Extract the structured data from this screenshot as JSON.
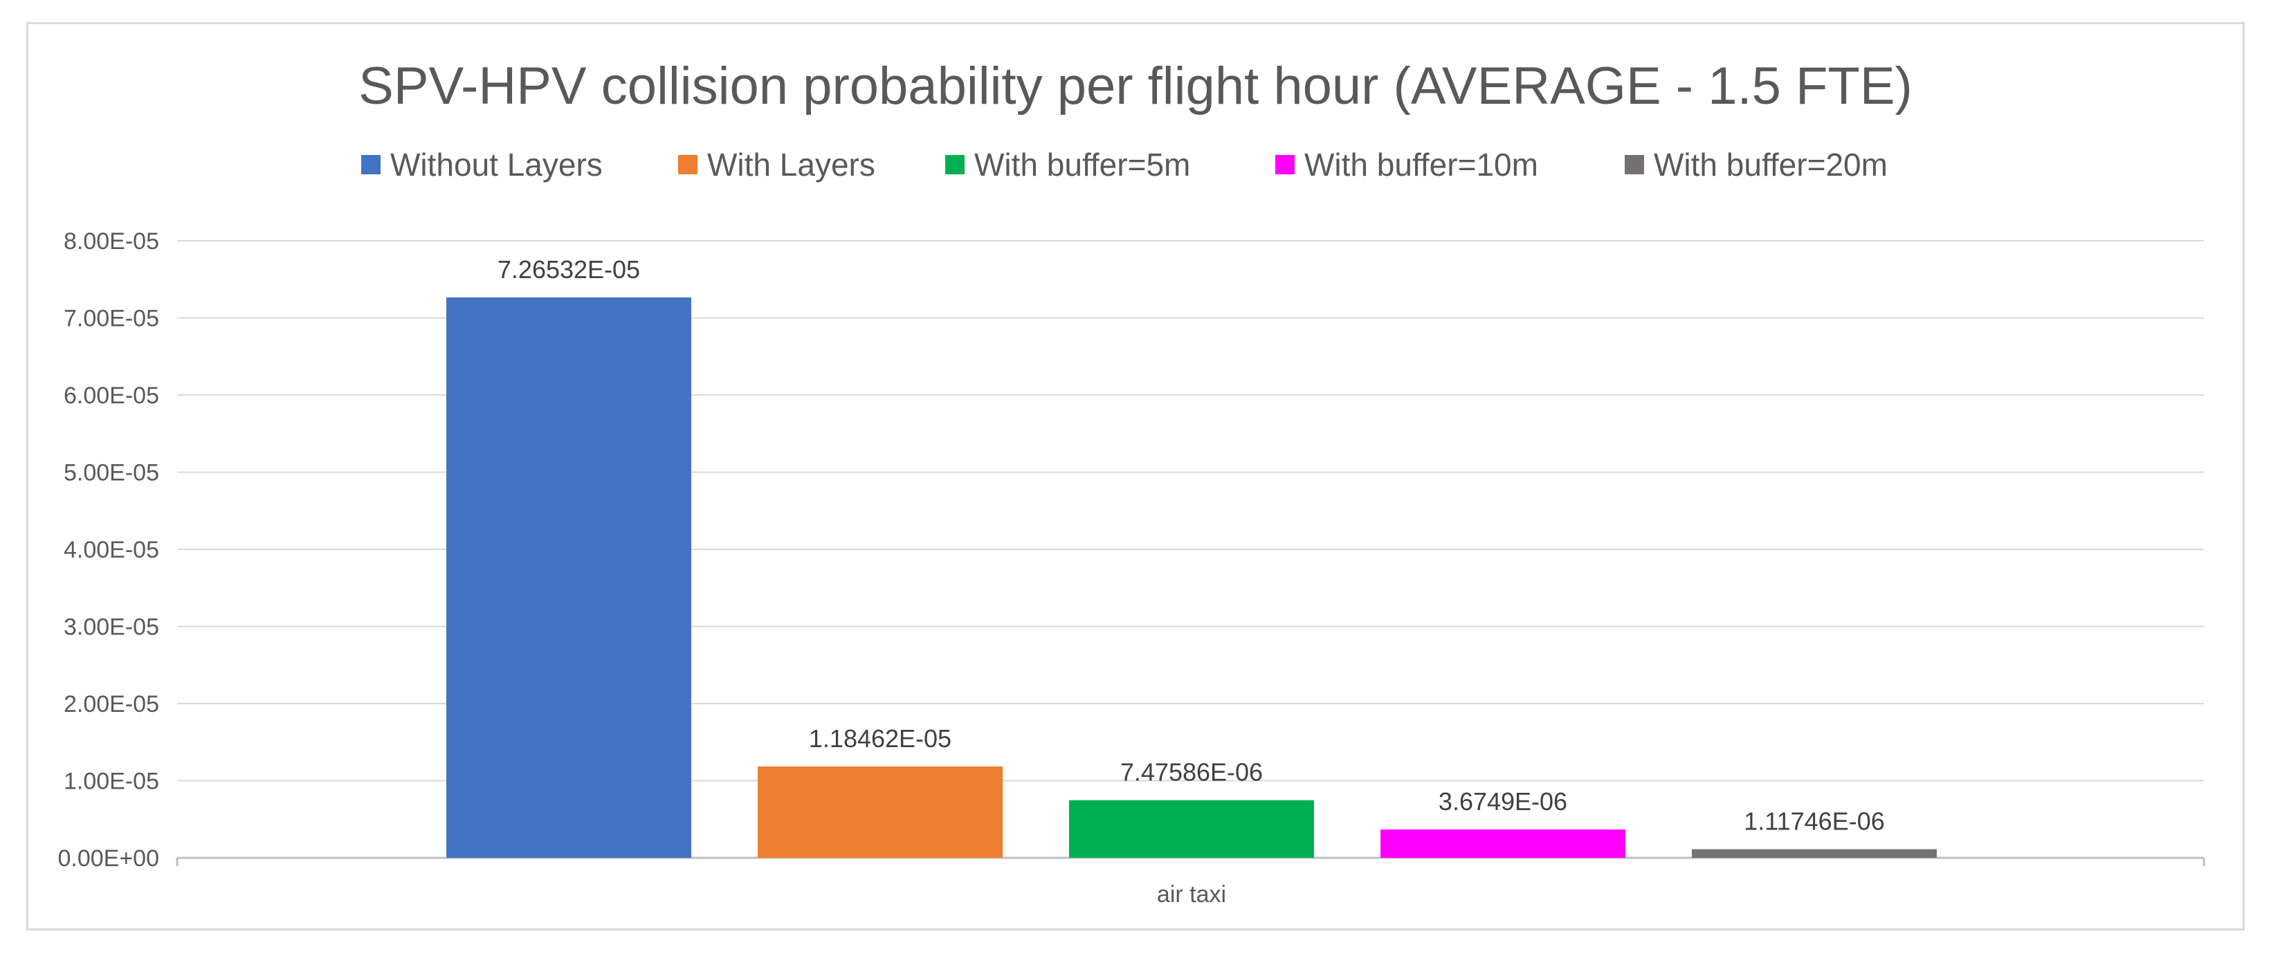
{
  "chart_data": {
    "type": "bar",
    "title": "SPV-HPV collision probability per flight hour (AVERAGE - 1.5 FTE)",
    "xlabel": "",
    "ylabel": "",
    "categories": [
      "air taxi"
    ],
    "ylim": [
      0,
      8e-05
    ],
    "yticks": [
      0,
      1e-05,
      2e-05,
      3e-05,
      4e-05,
      5e-05,
      6e-05,
      7e-05,
      8e-05
    ],
    "ytick_labels": [
      "0.00E+00",
      "1.00E-05",
      "2.00E-05",
      "3.00E-05",
      "4.00E-05",
      "5.00E-05",
      "6.00E-05",
      "7.00E-05",
      "8.00E-05"
    ],
    "grid": true,
    "legend_position": "top",
    "series": [
      {
        "name": "Without Layers",
        "values": [
          7.26532e-05
        ],
        "label": "7.26532E-05",
        "color": "#4472C4"
      },
      {
        "name": "With Layers",
        "values": [
          1.18462e-05
        ],
        "label": "1.18462E-05",
        "color": "#ED7D31"
      },
      {
        "name": "With buffer=5m",
        "values": [
          7.47586e-06
        ],
        "label": "7.47586E-06",
        "color": "#00B050"
      },
      {
        "name": "With buffer=10m",
        "values": [
          3.6749e-06
        ],
        "label": "3.6749E-06",
        "color": "#FF00FF"
      },
      {
        "name": "With buffer=20m",
        "values": [
          1.11746e-06
        ],
        "label": "1.11746E-06",
        "color": "#767171"
      }
    ]
  }
}
